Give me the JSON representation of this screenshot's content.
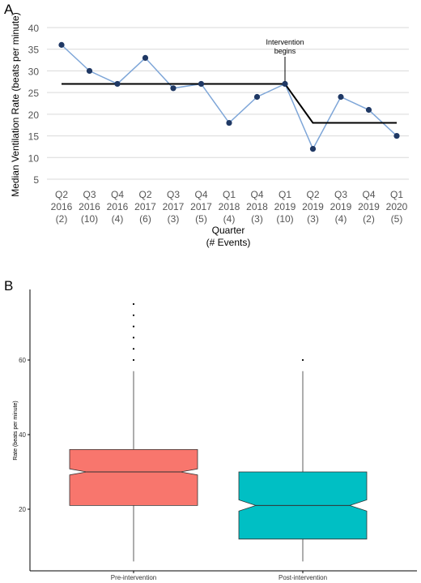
{
  "panels": {
    "a_label": "A",
    "b_label": "B"
  },
  "chart_data": [
    {
      "type": "line",
      "title": "",
      "ylabel": "Median Ventilation Rate (beats per minute)",
      "xlabel": "Quarter",
      "xlabel2": "(# Events)",
      "ylim": [
        5,
        40
      ],
      "yticks": [
        5,
        10,
        15,
        20,
        25,
        30,
        35,
        40
      ],
      "grid": true,
      "categories": [
        {
          "q": "Q2",
          "year": "2016",
          "events": "(2)"
        },
        {
          "q": "Q3",
          "year": "2016",
          "events": "(10)"
        },
        {
          "q": "Q4",
          "year": "2016",
          "events": "(4)"
        },
        {
          "q": "Q2",
          "year": "2017",
          "events": "(6)"
        },
        {
          "q": "Q3",
          "year": "2017",
          "events": "(3)"
        },
        {
          "q": "Q4",
          "year": "2017",
          "events": "(5)"
        },
        {
          "q": "Q1",
          "year": "2018",
          "events": "(4)"
        },
        {
          "q": "Q4",
          "year": "2018",
          "events": "(3)"
        },
        {
          "q": "Q1",
          "year": "2019",
          "events": "(10)"
        },
        {
          "q": "Q2",
          "year": "2019",
          "events": "(3)"
        },
        {
          "q": "Q3",
          "year": "2019",
          "events": "(4)"
        },
        {
          "q": "Q4",
          "year": "2019",
          "events": "(2)"
        },
        {
          "q": "Q1",
          "year": "2020",
          "events": "(5)"
        }
      ],
      "series": [
        {
          "values": [
            36,
            30,
            27,
            33,
            26,
            27,
            18,
            24,
            27,
            12,
            24,
            21,
            15
          ],
          "color": "#7ea6d8",
          "marker_color": "#1f3864"
        }
      ],
      "median_lines": [
        {
          "from": 0,
          "to": 8,
          "value": 27
        },
        {
          "from": 9,
          "to": 12,
          "value": 18
        }
      ],
      "annotation": {
        "line1": "Intervention",
        "line2": "begins",
        "at_index": 8
      }
    },
    {
      "type": "box",
      "ylabel": "Rate (beats per minute)",
      "yticks": [
        20,
        40,
        60
      ],
      "ylim": [
        4,
        78
      ],
      "notched": true,
      "grid": false,
      "groups": [
        {
          "name": "Pre-intervention",
          "q1": 21,
          "median": 30,
          "q3": 36,
          "whisker_low": 6,
          "whisker_high": 57,
          "notch": 0.8,
          "outliers": [
            60,
            63,
            66,
            69,
            72,
            75
          ],
          "color": "#f8766d"
        },
        {
          "name": "Post-intervention",
          "q1": 12,
          "median": 21,
          "q3": 30,
          "whisker_low": 6,
          "whisker_high": 57,
          "notch": 1.5,
          "outliers": [
            60
          ],
          "color": "#00bfc4"
        }
      ]
    }
  ]
}
